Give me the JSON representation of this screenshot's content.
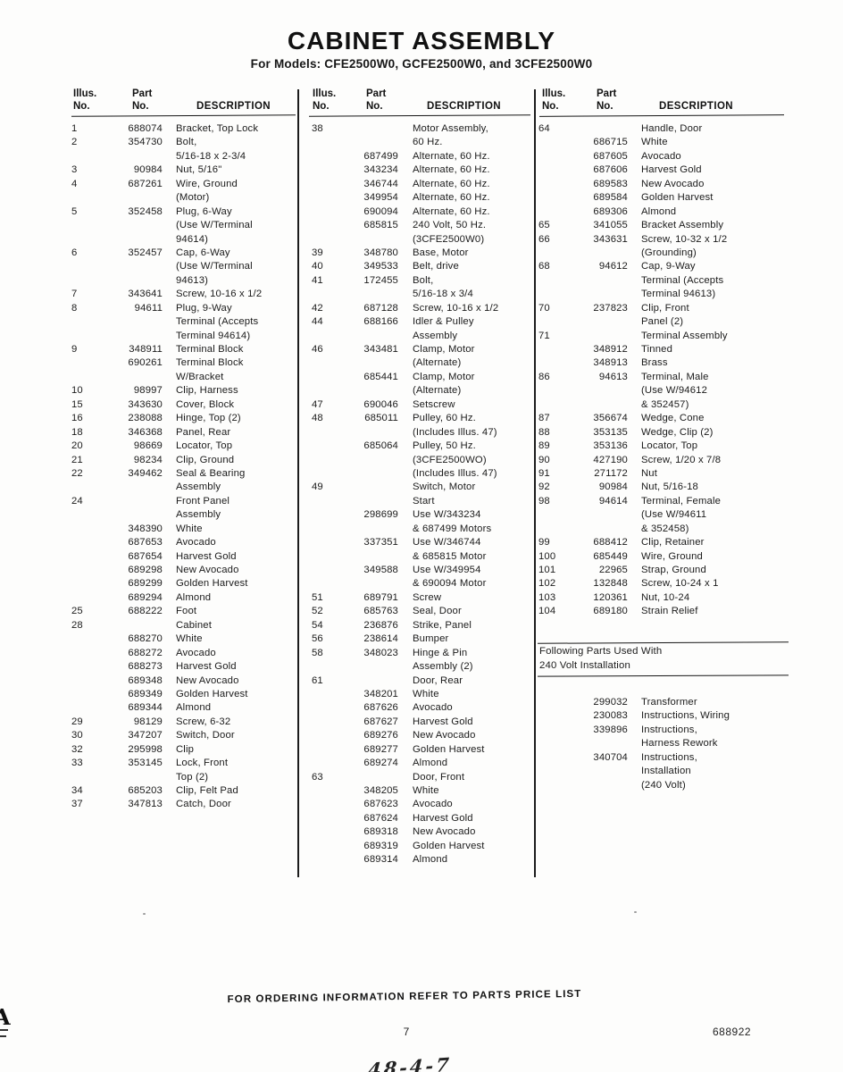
{
  "page": {
    "title": "CABINET ASSEMBLY",
    "subtitle": "For Models: CFE2500W0, GCFE2500W0, and 3CFE2500W0",
    "footer_note": "FOR ORDERING INFORMATION REFER TO PARTS PRICE LIST",
    "page_number": "7",
    "doc_number": "688922",
    "handwritten_note": "48-4-7",
    "margin_mark": "A"
  },
  "table": {
    "headers": {
      "illus": "Illus.",
      "no": "No.",
      "part": "Part",
      "description": "DESCRIPTION"
    },
    "columns": [
      {
        "lines": [
          [
            "1",
            "688074",
            "Bracket, Top Lock"
          ],
          [
            "2",
            "354730",
            "Bolt,"
          ],
          [
            "",
            "",
            "5/16-18 x 2-3/4"
          ],
          [
            "3",
            "90984",
            "Nut, 5/16\""
          ],
          [
            "4",
            "687261",
            "Wire, Ground"
          ],
          [
            "",
            "",
            "(Motor)"
          ],
          [
            "5",
            "352458",
            "Plug, 6-Way"
          ],
          [
            "",
            "",
            "(Use W/Terminal"
          ],
          [
            "",
            "",
            "94614)"
          ],
          [
            "6",
            "352457",
            "Cap, 6-Way"
          ],
          [
            "",
            "",
            "(Use W/Terminal"
          ],
          [
            "",
            "",
            "94613)"
          ],
          [
            "7",
            "343641",
            "Screw, 10-16 x 1/2"
          ],
          [
            "8",
            "94611",
            "Plug, 9-Way"
          ],
          [
            "",
            "",
            "Terminal (Accepts"
          ],
          [
            "",
            "",
            "Terminal 94614)"
          ],
          [
            "9",
            "348911",
            "Terminal Block"
          ],
          [
            "",
            "690261",
            "Terminal Block"
          ],
          [
            "",
            "",
            "W/Bracket"
          ],
          [
            "10",
            "98997",
            "Clip, Harness"
          ],
          [
            "15",
            "343630",
            "Cover, Block"
          ],
          [
            "16",
            "238088",
            "Hinge, Top (2)"
          ],
          [
            "18",
            "346368",
            "Panel, Rear"
          ],
          [
            "20",
            "98669",
            "Locator, Top"
          ],
          [
            "21",
            "98234",
            "Clip, Ground"
          ],
          [
            "22",
            "349462",
            "Seal & Bearing"
          ],
          [
            "",
            "",
            "Assembly"
          ],
          [
            "24",
            "",
            "Front Panel"
          ],
          [
            "",
            "",
            "Assembly"
          ],
          [
            "",
            "348390",
            "White"
          ],
          [
            "",
            "687653",
            "Avocado"
          ],
          [
            "",
            "687654",
            "Harvest Gold"
          ],
          [
            "",
            "689298",
            "New Avocado"
          ],
          [
            "",
            "689299",
            "Golden Harvest"
          ],
          [
            "",
            "689294",
            "Almond"
          ],
          [
            "25",
            "688222",
            "Foot"
          ],
          [
            "28",
            "",
            "Cabinet"
          ],
          [
            "",
            "688270",
            "White"
          ],
          [
            "",
            "688272",
            "Avocado"
          ],
          [
            "",
            "688273",
            "Harvest Gold"
          ],
          [
            "",
            "689348",
            "New Avocado"
          ],
          [
            "",
            "689349",
            "Golden Harvest"
          ],
          [
            "",
            "689344",
            "Almond"
          ],
          [
            "29",
            "98129",
            "Screw, 6-32"
          ],
          [
            "30",
            "347207",
            "Switch, Door"
          ],
          [
            "32",
            "295998",
            "Clip"
          ],
          [
            "33",
            "353145",
            "Lock, Front"
          ],
          [
            "",
            "",
            "Top (2)"
          ],
          [
            "34",
            "685203",
            "Clip, Felt Pad"
          ],
          [
            "37",
            "347813",
            "Catch, Door"
          ]
        ]
      },
      {
        "lines": [
          [
            "38",
            "",
            "Motor Assembly,"
          ],
          [
            "",
            "",
            "60 Hz."
          ],
          [
            "",
            "687499",
            "Alternate, 60 Hz."
          ],
          [
            "",
            "343234",
            "Alternate, 60 Hz."
          ],
          [
            "",
            "346744",
            "Alternate, 60 Hz."
          ],
          [
            "",
            "349954",
            "Alternate, 60 Hz."
          ],
          [
            "",
            "690094",
            "Alternate, 60 Hz."
          ],
          [
            "",
            "685815",
            "240 Volt, 50 Hz."
          ],
          [
            "",
            "",
            "(3CFE2500W0)"
          ],
          [
            "39",
            "348780",
            "Base, Motor"
          ],
          [
            "40",
            "349533",
            "Belt, drive"
          ],
          [
            "41",
            "172455",
            "Bolt,"
          ],
          [
            "",
            "",
            "5/16-18 x 3/4"
          ],
          [
            "42",
            "687128",
            "Screw, 10-16 x 1/2"
          ],
          [
            "44",
            "688166",
            "Idler & Pulley"
          ],
          [
            "",
            "",
            "Assembly"
          ],
          [
            "46",
            "343481",
            "Clamp, Motor"
          ],
          [
            "",
            "",
            "(Alternate)"
          ],
          [
            "",
            "685441",
            "Clamp, Motor"
          ],
          [
            "",
            "",
            "(Alternate)"
          ],
          [
            "47",
            "690046",
            "Setscrew"
          ],
          [
            "48",
            "685011",
            "Pulley, 60 Hz."
          ],
          [
            "",
            "",
            "(Includes Illus. 47)"
          ],
          [
            "",
            "685064",
            "Pulley, 50 Hz."
          ],
          [
            "",
            "",
            "(3CFE2500WO)"
          ],
          [
            "",
            "",
            "(Includes Illus. 47)"
          ],
          [
            "49",
            "",
            "Switch, Motor"
          ],
          [
            "",
            "",
            "Start"
          ],
          [
            "",
            "298699",
            "Use W/343234"
          ],
          [
            "",
            "",
            "& 687499 Motors"
          ],
          [
            "",
            "337351",
            "Use W/346744"
          ],
          [
            "",
            "",
            "& 685815 Motor"
          ],
          [
            "",
            "349588",
            "Use W/349954"
          ],
          [
            "",
            "",
            "& 690094 Motor"
          ],
          [
            "51",
            "689791",
            "Screw"
          ],
          [
            "52",
            "685763",
            "Seal, Door"
          ],
          [
            "54",
            "236876",
            "Strike, Panel"
          ],
          [
            "56",
            "238614",
            "Bumper"
          ],
          [
            "58",
            "348023",
            "Hinge & Pin"
          ],
          [
            "",
            "",
            "Assembly (2)"
          ],
          [
            "61",
            "",
            "Door, Rear"
          ],
          [
            "",
            "348201",
            "White"
          ],
          [
            "",
            "687626",
            "Avocado"
          ],
          [
            "",
            "687627",
            "Harvest Gold"
          ],
          [
            "",
            "689276",
            "New Avocado"
          ],
          [
            "",
            "689277",
            "Golden Harvest"
          ],
          [
            "",
            "689274",
            "Almond"
          ],
          [
            "63",
            "",
            "Door, Front"
          ],
          [
            "",
            "348205",
            "White"
          ],
          [
            "",
            "687623",
            "Avocado"
          ],
          [
            "",
            "687624",
            "Harvest Gold"
          ],
          [
            "",
            "689318",
            "New Avocado"
          ],
          [
            "",
            "689319",
            "Golden Harvest"
          ],
          [
            "",
            "689314",
            "Almond"
          ]
        ]
      },
      {
        "lines": [
          [
            "64",
            "",
            "Handle, Door"
          ],
          [
            "",
            "686715",
            "White"
          ],
          [
            "",
            "687605",
            "Avocado"
          ],
          [
            "",
            "687606",
            "Harvest Gold"
          ],
          [
            "",
            "689583",
            "New Avocado"
          ],
          [
            "",
            "689584",
            "Golden Harvest"
          ],
          [
            "",
            "689306",
            "Almond"
          ],
          [
            "65",
            "341055",
            "Bracket Assembly"
          ],
          [
            "66",
            "343631",
            "Screw, 10-32 x 1/2"
          ],
          [
            "",
            "",
            "(Grounding)"
          ],
          [
            "68",
            "94612",
            "Cap, 9-Way"
          ],
          [
            "",
            "",
            "Terminal (Accepts"
          ],
          [
            "",
            "",
            "Terminal 94613)"
          ],
          [
            "70",
            "237823",
            "Clip, Front"
          ],
          [
            "",
            "",
            "Panel (2)"
          ],
          [
            "71",
            "",
            "Terminal Assembly"
          ],
          [
            "",
            "348912",
            "Tinned"
          ],
          [
            "",
            "348913",
            "Brass"
          ],
          [
            "86",
            "94613",
            "Terminal, Male"
          ],
          [
            "",
            "",
            "(Use W/94612"
          ],
          [
            "",
            "",
            "& 352457)"
          ],
          [
            "87",
            "356674",
            "Wedge, Cone"
          ],
          [
            "88",
            "353135",
            "Wedge, Clip (2)"
          ],
          [
            "89",
            "353136",
            "Locator, Top"
          ],
          [
            "90",
            "427190",
            "Screw, 1/20 x 7/8"
          ],
          [
            "91",
            "271172",
            "Nut"
          ],
          [
            "92",
            "90984",
            "Nut, 5/16-18"
          ],
          [
            "98",
            "94614",
            "Terminal, Female"
          ],
          [
            "",
            "",
            "(Use W/94611"
          ],
          [
            "",
            "",
            "& 352458)"
          ],
          [
            "99",
            "688412",
            "Clip, Retainer"
          ],
          [
            "100",
            "685449",
            "Wire, Ground"
          ],
          [
            "101",
            "22965",
            "Strap, Ground"
          ],
          [
            "102",
            "132848",
            "Screw, 10-24 x 1"
          ],
          [
            "103",
            "120361",
            "Nut, 10-24"
          ],
          [
            "104",
            "689180",
            "Strain Relief"
          ]
        ]
      }
    ]
  },
  "section_240v": {
    "heading_lines": [
      "Following Parts Used With",
      "240 Volt Installation"
    ],
    "lines": [
      [
        "",
        "299032",
        "Transformer"
      ],
      [
        "",
        "230083",
        "Instructions, Wiring"
      ],
      [
        "",
        "339896",
        "Instructions,"
      ],
      [
        "",
        "",
        "Harness Rework"
      ],
      [
        "",
        "340704",
        "Instructions,"
      ],
      [
        "",
        "",
        "Installation"
      ],
      [
        "",
        "",
        "(240 Volt)"
      ]
    ]
  }
}
